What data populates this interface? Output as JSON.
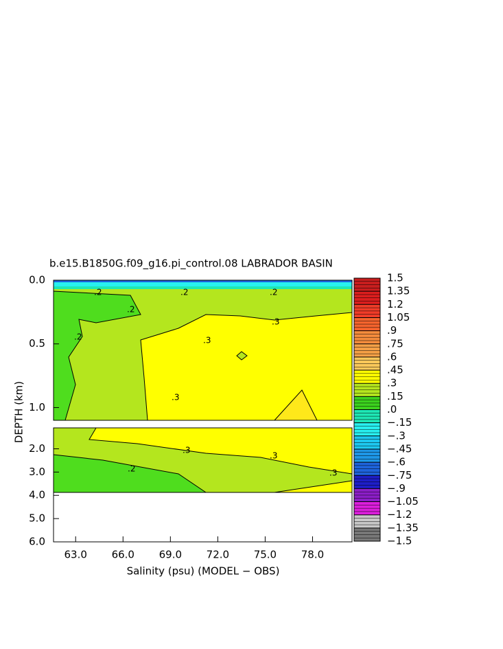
{
  "chart_data": {
    "type": "contour",
    "title": "b.e15.B1850G.f09_g16.pi_control.08 LABRADOR BASIN",
    "xlabel": "Salinity (psu) (MODEL − OBS)",
    "ylabel": "DEPTH (km)",
    "xlim": [
      61.6,
      80.5
    ],
    "xticks": [
      {
        "value": 63,
        "label": "63.0"
      },
      {
        "value": 66,
        "label": "66.0"
      },
      {
        "value": 69,
        "label": "69.0"
      },
      {
        "value": 72,
        "label": "72.0"
      },
      {
        "value": 75,
        "label": "75.0"
      },
      {
        "value": 78,
        "label": "78.0"
      }
    ],
    "panels": [
      {
        "ylim": [
          0,
          1.1
        ],
        "yticks": [
          {
            "value": 0,
            "label": "0.0"
          },
          {
            "value": 0.5,
            "label": "0.5"
          },
          {
            "value": 1,
            "label": "1.0"
          }
        ]
      },
      {
        "ylim": [
          1.1,
          6
        ],
        "yticks": [
          {
            "value": 2,
            "label": "2.0"
          },
          {
            "value": 3,
            "label": "3.0"
          },
          {
            "value": 4,
            "label": "4.0"
          },
          {
            "value": 5,
            "label": "5.0"
          },
          {
            "value": 6,
            "label": "6.0"
          }
        ]
      }
    ],
    "colorbar": {
      "ticks": [
        {
          "value": 1.5,
          "label": "1.5"
        },
        {
          "value": 1.35,
          "label": "1.35"
        },
        {
          "value": 1.2,
          "label": "1.2"
        },
        {
          "value": 1.05,
          "label": "1.05"
        },
        {
          "value": 0.9,
          "label": ".9"
        },
        {
          "value": 0.75,
          "label": ".75"
        },
        {
          "value": 0.6,
          "label": ".6"
        },
        {
          "value": 0.45,
          "label": ".45"
        },
        {
          "value": 0.3,
          "label": ".3"
        },
        {
          "value": 0.15,
          "label": ".15"
        },
        {
          "value": 0,
          "label": ".0"
        },
        {
          "value": -0.15,
          "label": "−.15"
        },
        {
          "value": -0.3,
          "label": "−.3"
        },
        {
          "value": -0.45,
          "label": "−.45"
        },
        {
          "value": -0.6,
          "label": "−.6"
        },
        {
          "value": -0.75,
          "label": "−.75"
        },
        {
          "value": -0.9,
          "label": "−.9"
        },
        {
          "value": -1.05,
          "label": "−1.05"
        },
        {
          "value": -1.2,
          "label": "−1.2"
        },
        {
          "value": -1.35,
          "label": "−1.35"
        },
        {
          "value": -1.5,
          "label": "−1.5"
        }
      ],
      "colors": [
        "#c81e1e",
        "#dc1e1e",
        "#f03c28",
        "#f5642d",
        "#f58c3c",
        "#f5a046",
        "#fac85a",
        "#ffff00",
        "#b4e61e",
        "#3cd21e",
        "#1ee6b4",
        "#28f0f0",
        "#1ec8f0",
        "#1e96e6",
        "#1e64dc",
        "#1e1ec8",
        "#8c1ec8",
        "#dc1edc",
        "#c8c8c8",
        "#787878"
      ]
    },
    "contour_labels": [
      {
        "value": 0.2,
        "label": ".2"
      },
      {
        "value": 0.2,
        "label": ".2"
      },
      {
        "value": 0.2,
        "label": ".2"
      },
      {
        "value": 0.2,
        "label": ".2"
      },
      {
        "value": 0.2,
        "label": ".2"
      },
      {
        "value": 0.3,
        "label": ".3"
      },
      {
        "value": 0.3,
        "label": ".3"
      },
      {
        "value": 0.3,
        "label": ".3"
      },
      {
        "value": 0.3,
        "label": ".3"
      },
      {
        "value": 0.3,
        "label": ".3"
      },
      {
        "value": 0.3,
        "label": ".3"
      },
      {
        "value": 0.2,
        "label": ".2"
      }
    ]
  }
}
